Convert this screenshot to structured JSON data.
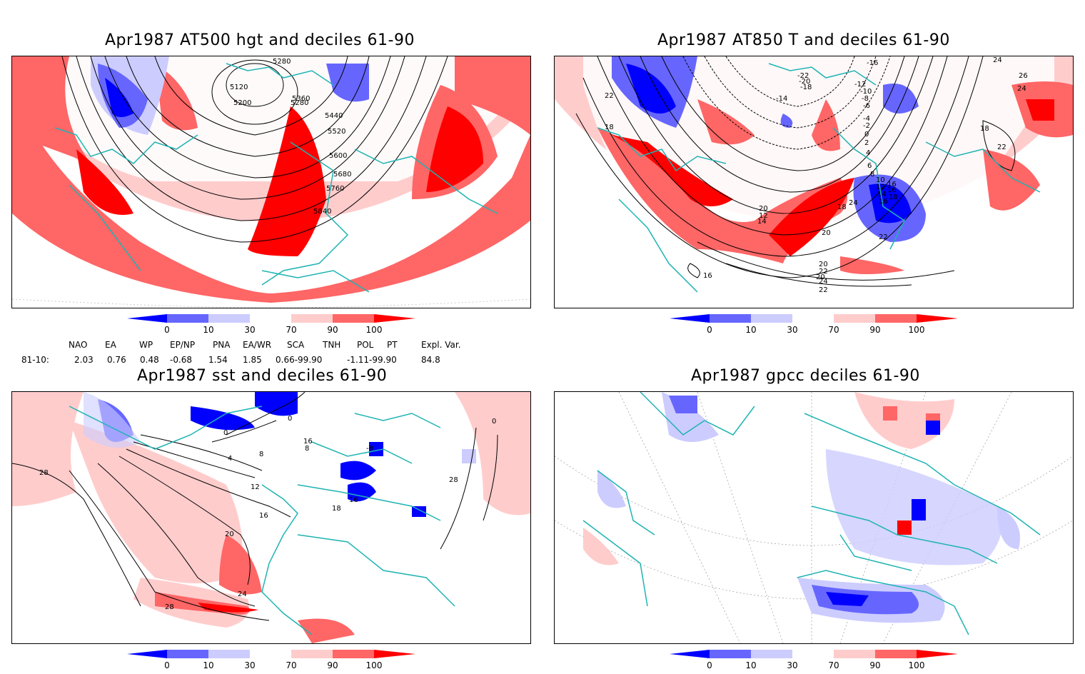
{
  "panels": [
    {
      "title": "Apr1987 AT500 hgt and deciles 61-90",
      "contour_labels": [
        "5280",
        "5120",
        "5200",
        "5280",
        "5360",
        "5440",
        "5520",
        "5600",
        "5680",
        "5760",
        "5840"
      ]
    },
    {
      "title": "Apr1987 AT850 T and deciles 61-90",
      "contour_labels": [
        "-16",
        "-22",
        "-20",
        "-18",
        "-14",
        "-12",
        "-10",
        "-8",
        "-6",
        "-4",
        "-2",
        "0",
        "2",
        "4",
        "6",
        "8",
        "10",
        "12",
        "14",
        "16",
        "18",
        "20",
        "22",
        "24",
        "26",
        "24",
        "22",
        "18",
        "18",
        "22",
        "24",
        "20",
        "12",
        "14",
        "16",
        "16",
        "18",
        "20",
        "22",
        "24",
        "22",
        "20",
        "16"
      ]
    },
    {
      "title": "Apr1987 sst and deciles 61-90",
      "contour_labels": [
        "0",
        "0",
        "4",
        "8",
        "12",
        "16",
        "20",
        "24",
        "28",
        "28",
        "28",
        "0",
        "-8",
        "8",
        "16",
        "18",
        "16"
      ]
    },
    {
      "title": "Apr1987 gpcc deciles 61-90",
      "contour_labels": []
    }
  ],
  "colorbar": {
    "ticks": [
      "0",
      "10",
      "30",
      "70",
      "90",
      "100"
    ],
    "colors": [
      "#0000ff",
      "#6666ff",
      "#ccccff",
      "#ffffff",
      "#ffcccc",
      "#ff6666",
      "#ff0000"
    ]
  },
  "indices": {
    "headers": [
      "NAO",
      "EA",
      "WP",
      "EP/NP",
      "PNA",
      "EA/WR",
      "SCA",
      "TNH",
      "POL",
      "PT",
      "Expl. Var."
    ],
    "row_label": "81-10:",
    "values": [
      "2.03",
      "0.76",
      "0.48",
      "-0.68",
      "1.54",
      "1.85",
      "0.66-99.90",
      "-1.11-99.90",
      "84.8"
    ]
  },
  "colors": {
    "coast": "#1fb3b3",
    "contour": "#000000",
    "strong_pos": "#ff0000",
    "med_pos": "#ff6666",
    "weak_pos": "#ffcccc",
    "weak_neg": "#ccccff",
    "med_neg": "#6666ff",
    "strong_neg": "#0000ff"
  }
}
